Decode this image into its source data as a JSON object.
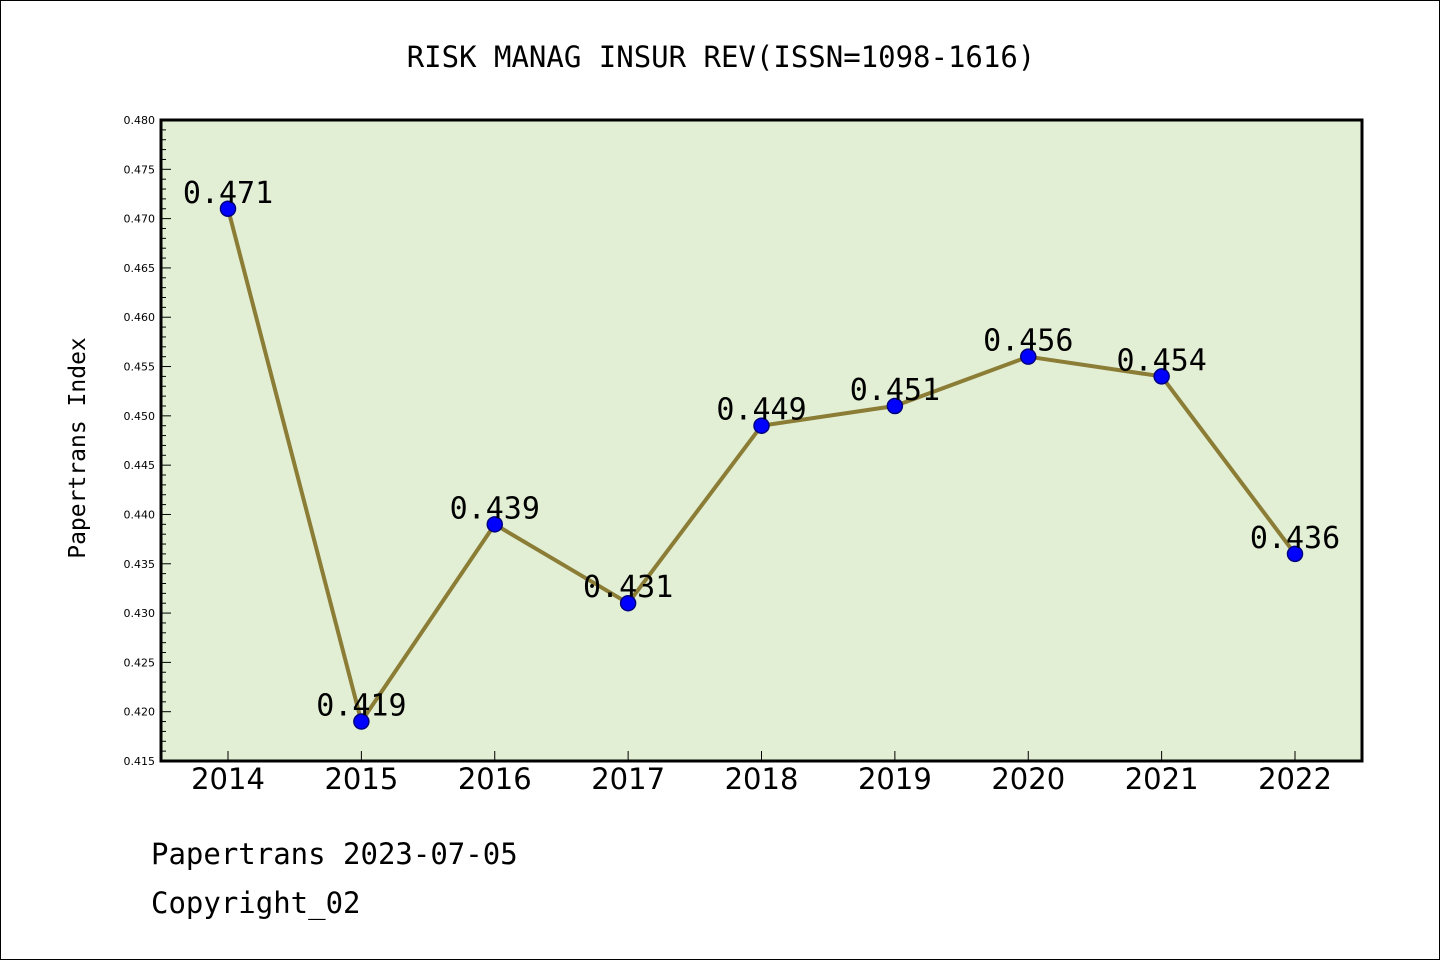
{
  "chart_data": {
    "type": "line",
    "title": "RISK MANAG INSUR REV(ISSN=1098-1616)",
    "xlabel": "",
    "ylabel": "Papertrans Index",
    "categories": [
      "2014",
      "2015",
      "2016",
      "2017",
      "2018",
      "2019",
      "2020",
      "2021",
      "2022"
    ],
    "series": [
      {
        "values": [
          0.471,
          0.419,
          0.439,
          0.431,
          0.449,
          0.451,
          0.456,
          0.454,
          0.436
        ],
        "data_labels": [
          "0.471",
          "0.419",
          "0.439",
          "0.431",
          "0.449",
          "0.451",
          "0.456",
          "0.454",
          "0.436"
        ]
      }
    ],
    "ylim": [
      0.415,
      0.48
    ],
    "yticks": [
      "0.415",
      "0.420",
      "0.425",
      "0.430",
      "0.435",
      "0.440",
      "0.445",
      "0.450",
      "0.455",
      "0.460",
      "0.465",
      "0.470",
      "0.475",
      "0.480"
    ],
    "grid": false,
    "legend": "none",
    "colors": {
      "plot_background": "#e2efd5",
      "line": "#8b7d35",
      "marker_fill": "#0000ff",
      "marker_edge": "#000080",
      "frame": "#000000"
    }
  },
  "footer": {
    "source_date": "Papertrans 2023-07-05",
    "copyright": "Copyright_02"
  }
}
